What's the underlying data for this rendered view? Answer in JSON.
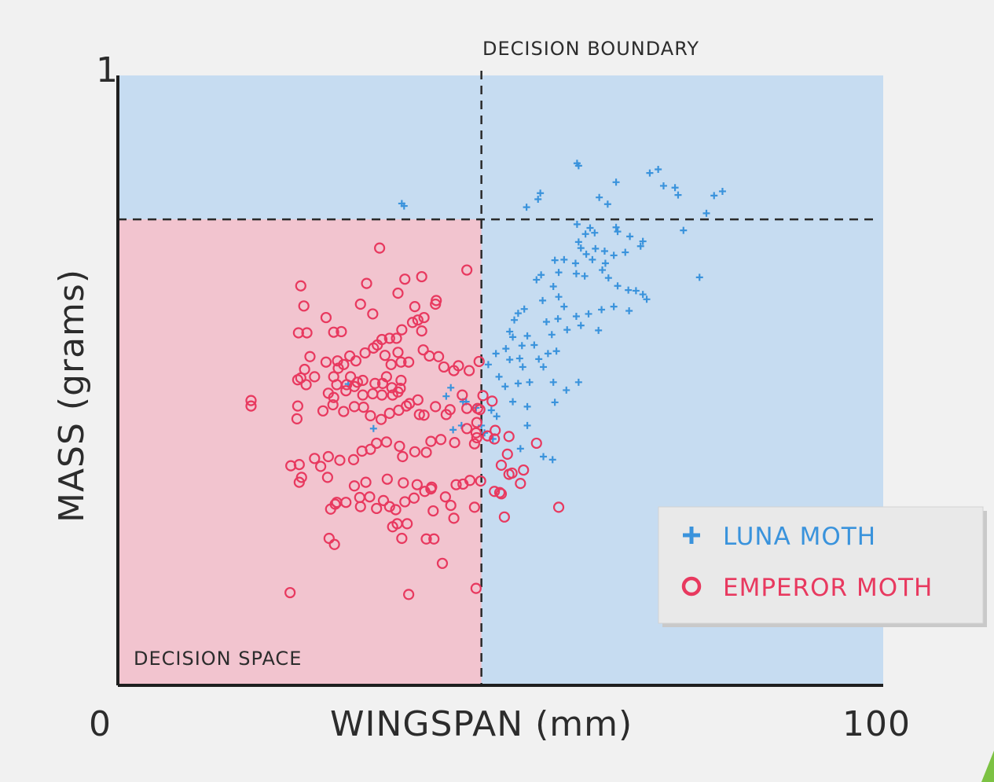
{
  "chart_data": {
    "type": "scatter",
    "xlabel": "WINGSPAN (mm)",
    "ylabel": "MASS (grams)",
    "xlim": [
      0,
      100
    ],
    "ylim": [
      0,
      1
    ],
    "x_tick_labels": [
      "0",
      "100"
    ],
    "y_tick_labels": [
      "1"
    ],
    "grid": false,
    "legend_position": "right",
    "annotations": {
      "boundary_label": "DECISION BOUNDARY",
      "space_label": "DECISION SPACE"
    },
    "decision_boundary": {
      "x": 47.5,
      "y": 0.764
    },
    "regions": {
      "emperor_color": "#f2c4cf",
      "luna_color": "#c6dcf1"
    },
    "series": [
      {
        "name": "LUNA MOTH",
        "marker": "plus",
        "color": "#3a93dc",
        "points": [
          [
            37.1,
            0.79
          ],
          [
            37.4,
            0.786
          ],
          [
            60.2,
            0.852
          ],
          [
            60.0,
            0.856
          ],
          [
            53.4,
            0.784
          ],
          [
            54.9,
            0.797
          ],
          [
            55.2,
            0.807
          ],
          [
            65.1,
            0.825
          ],
          [
            70.6,
            0.846
          ],
          [
            69.5,
            0.84
          ],
          [
            71.3,
            0.819
          ],
          [
            72.8,
            0.816
          ],
          [
            73.2,
            0.804
          ],
          [
            79.0,
            0.81
          ],
          [
            77.9,
            0.803
          ],
          [
            76.9,
            0.774
          ],
          [
            62.9,
            0.8
          ],
          [
            64.0,
            0.789
          ],
          [
            60.0,
            0.756
          ],
          [
            61.7,
            0.75
          ],
          [
            61.1,
            0.74
          ],
          [
            62.3,
            0.742
          ],
          [
            65.1,
            0.751
          ],
          [
            65.3,
            0.744
          ],
          [
            66.9,
            0.736
          ],
          [
            68.6,
            0.728
          ],
          [
            68.3,
            0.72
          ],
          [
            60.2,
            0.727
          ],
          [
            60.5,
            0.717
          ],
          [
            62.4,
            0.716
          ],
          [
            63.6,
            0.712
          ],
          [
            64.8,
            0.705
          ],
          [
            66.3,
            0.71
          ],
          [
            73.9,
            0.746
          ],
          [
            76.0,
            0.669
          ],
          [
            61.2,
            0.707
          ],
          [
            62.0,
            0.698
          ],
          [
            63.7,
            0.692
          ],
          [
            59.8,
            0.692
          ],
          [
            58.3,
            0.698
          ],
          [
            57.1,
            0.697
          ],
          [
            55.3,
            0.673
          ],
          [
            54.7,
            0.665
          ],
          [
            57.6,
            0.677
          ],
          [
            59.9,
            0.675
          ],
          [
            61.0,
            0.671
          ],
          [
            63.3,
            0.681
          ],
          [
            64.1,
            0.668
          ],
          [
            65.3,
            0.655
          ],
          [
            66.7,
            0.648
          ],
          [
            67.7,
            0.647
          ],
          [
            68.6,
            0.641
          ],
          [
            69.1,
            0.633
          ],
          [
            66.8,
            0.614
          ],
          [
            64.8,
            0.621
          ],
          [
            63.2,
            0.616
          ],
          [
            61.5,
            0.609
          ],
          [
            59.9,
            0.605
          ],
          [
            60.5,
            0.59
          ],
          [
            62.8,
            0.582
          ],
          [
            58.3,
            0.621
          ],
          [
            57.6,
            0.637
          ],
          [
            56.9,
            0.654
          ],
          [
            55.5,
            0.631
          ],
          [
            57.5,
            0.601
          ],
          [
            56.0,
            0.596
          ],
          [
            58.7,
            0.583
          ],
          [
            56.7,
            0.575
          ],
          [
            57.3,
            0.548
          ],
          [
            53.1,
            0.617
          ],
          [
            51.8,
            0.599
          ],
          [
            51.6,
            0.571
          ],
          [
            53.5,
            0.573
          ],
          [
            54.4,
            0.558
          ],
          [
            55.0,
            0.535
          ],
          [
            56.2,
            0.544
          ],
          [
            55.6,
            0.522
          ],
          [
            52.5,
            0.536
          ],
          [
            52.9,
            0.522
          ],
          [
            52.8,
            0.557
          ],
          [
            51.2,
            0.534
          ],
          [
            50.7,
            0.552
          ],
          [
            49.4,
            0.544
          ],
          [
            48.4,
            0.526
          ],
          [
            49.8,
            0.506
          ],
          [
            50.6,
            0.49
          ],
          [
            52.3,
            0.495
          ],
          [
            53.8,
            0.497
          ],
          [
            56.9,
            0.497
          ],
          [
            58.6,
            0.484
          ],
          [
            60.2,
            0.497
          ],
          [
            57.1,
            0.464
          ],
          [
            53.5,
            0.457
          ],
          [
            51.6,
            0.465
          ],
          [
            49.5,
            0.441
          ],
          [
            48.8,
            0.451
          ],
          [
            55.6,
            0.375
          ],
          [
            53.5,
            0.426
          ],
          [
            52.6,
            0.388
          ],
          [
            56.8,
            0.37
          ],
          [
            47.9,
            0.414
          ],
          [
            49.0,
            0.404
          ],
          [
            44.9,
            0.426
          ],
          [
            43.8,
            0.419
          ],
          [
            45.5,
            0.465
          ],
          [
            45.1,
            0.465
          ],
          [
            42.9,
            0.474
          ],
          [
            43.5,
            0.488
          ],
          [
            33.4,
            0.421
          ],
          [
            30.1,
            0.494
          ],
          [
            51.2,
            0.58
          ],
          [
            52.3,
            0.61
          ],
          [
            46.8,
            0.455
          ],
          [
            47.5,
            0.426
          ]
        ]
      },
      {
        "name": "EMPEROR MOTH",
        "marker": "circle",
        "color": "#e8395f",
        "points": [
          [
            34.2,
            0.717
          ],
          [
            45.6,
            0.681
          ],
          [
            23.9,
            0.655
          ],
          [
            37.5,
            0.666
          ],
          [
            39.7,
            0.67
          ],
          [
            32.5,
            0.659
          ],
          [
            24.3,
            0.622
          ],
          [
            31.7,
            0.625
          ],
          [
            38.8,
            0.621
          ],
          [
            41.5,
            0.625
          ],
          [
            41.6,
            0.631
          ],
          [
            36.6,
            0.643
          ],
          [
            33.3,
            0.609
          ],
          [
            39.7,
            0.581
          ],
          [
            40.0,
            0.603
          ],
          [
            27.2,
            0.603
          ],
          [
            38.5,
            0.595
          ],
          [
            39.2,
            0.599
          ],
          [
            23.6,
            0.578
          ],
          [
            24.7,
            0.578
          ],
          [
            28.2,
            0.579
          ],
          [
            29.2,
            0.58
          ],
          [
            34.5,
            0.567
          ],
          [
            35.5,
            0.569
          ],
          [
            36.4,
            0.569
          ],
          [
            37.1,
            0.583
          ],
          [
            33.9,
            0.558
          ],
          [
            36.6,
            0.546
          ],
          [
            38.0,
            0.53
          ],
          [
            39.9,
            0.55
          ],
          [
            40.7,
            0.54
          ],
          [
            41.9,
            0.539
          ],
          [
            42.6,
            0.522
          ],
          [
            43.9,
            0.516
          ],
          [
            44.5,
            0.524
          ],
          [
            45.9,
            0.516
          ],
          [
            47.2,
            0.531
          ],
          [
            37.0,
            0.53
          ],
          [
            35.7,
            0.526
          ],
          [
            34.9,
            0.541
          ],
          [
            33.4,
            0.553
          ],
          [
            32.3,
            0.545
          ],
          [
            31.1,
            0.532
          ],
          [
            30.3,
            0.54
          ],
          [
            29.5,
            0.526
          ],
          [
            28.7,
            0.532
          ],
          [
            27.2,
            0.53
          ],
          [
            25.1,
            0.539
          ],
          [
            24.4,
            0.518
          ],
          [
            25.7,
            0.506
          ],
          [
            24.6,
            0.493
          ],
          [
            23.9,
            0.504
          ],
          [
            23.5,
            0.501
          ],
          [
            28.2,
            0.506
          ],
          [
            28.6,
            0.493
          ],
          [
            28.8,
            0.52
          ],
          [
            30.4,
            0.506
          ],
          [
            31.3,
            0.497
          ],
          [
            32.0,
            0.5
          ],
          [
            33.6,
            0.495
          ],
          [
            34.6,
            0.495
          ],
          [
            35.1,
            0.506
          ],
          [
            35.8,
            0.488
          ],
          [
            36.9,
            0.487
          ],
          [
            37.0,
            0.5
          ],
          [
            36.6,
            0.481
          ],
          [
            35.9,
            0.476
          ],
          [
            34.5,
            0.476
          ],
          [
            33.3,
            0.478
          ],
          [
            32.0,
            0.476
          ],
          [
            30.9,
            0.49
          ],
          [
            29.8,
            0.483
          ],
          [
            29.9,
            0.493
          ],
          [
            28.2,
            0.472
          ],
          [
            27.5,
            0.479
          ],
          [
            17.4,
            0.467
          ],
          [
            17.4,
            0.458
          ],
          [
            23.5,
            0.458
          ],
          [
            23.4,
            0.437
          ],
          [
            26.8,
            0.45
          ],
          [
            28.1,
            0.46
          ],
          [
            29.5,
            0.449
          ],
          [
            30.9,
            0.457
          ],
          [
            32.1,
            0.456
          ],
          [
            33.0,
            0.442
          ],
          [
            34.4,
            0.436
          ],
          [
            35.5,
            0.446
          ],
          [
            36.7,
            0.451
          ],
          [
            37.7,
            0.458
          ],
          [
            38.1,
            0.462
          ],
          [
            39.2,
            0.468
          ],
          [
            39.4,
            0.444
          ],
          [
            40.0,
            0.443
          ],
          [
            41.5,
            0.457
          ],
          [
            42.9,
            0.444
          ],
          [
            43.4,
            0.452
          ],
          [
            45.6,
            0.454
          ],
          [
            47.0,
            0.454
          ],
          [
            46.9,
            0.431
          ],
          [
            45.6,
            0.421
          ],
          [
            46.9,
            0.406
          ],
          [
            46.6,
            0.396
          ],
          [
            44.0,
            0.398
          ],
          [
            42.2,
            0.403
          ],
          [
            40.9,
            0.4
          ],
          [
            40.3,
            0.382
          ],
          [
            38.8,
            0.383
          ],
          [
            37.2,
            0.375
          ],
          [
            36.8,
            0.392
          ],
          [
            35.1,
            0.399
          ],
          [
            33.8,
            0.397
          ],
          [
            33.0,
            0.387
          ],
          [
            31.9,
            0.384
          ],
          [
            30.8,
            0.37
          ],
          [
            29.0,
            0.369
          ],
          [
            27.5,
            0.375
          ],
          [
            26.5,
            0.359
          ],
          [
            25.7,
            0.372
          ],
          [
            23.7,
            0.362
          ],
          [
            22.6,
            0.36
          ],
          [
            23.7,
            0.333
          ],
          [
            24.0,
            0.341
          ],
          [
            27.4,
            0.341
          ],
          [
            30.9,
            0.327
          ],
          [
            32.4,
            0.333
          ],
          [
            35.2,
            0.338
          ],
          [
            37.3,
            0.332
          ],
          [
            39.1,
            0.329
          ],
          [
            40.9,
            0.322
          ],
          [
            42.8,
            0.309
          ],
          [
            44.2,
            0.329
          ],
          [
            45.1,
            0.33
          ],
          [
            46.0,
            0.336
          ],
          [
            47.4,
            0.335
          ],
          [
            49.2,
            0.318
          ],
          [
            49.9,
            0.316
          ],
          [
            50.1,
            0.314
          ],
          [
            51.5,
            0.348
          ],
          [
            53.0,
            0.353
          ],
          [
            52.6,
            0.331
          ],
          [
            51.1,
            0.346
          ],
          [
            50.1,
            0.361
          ],
          [
            50.9,
            0.379
          ],
          [
            51.1,
            0.408
          ],
          [
            49.2,
            0.404
          ],
          [
            49.3,
            0.418
          ],
          [
            48.9,
            0.466
          ],
          [
            47.7,
            0.475
          ],
          [
            47.3,
            0.452
          ],
          [
            46.8,
            0.414
          ],
          [
            41.0,
            0.325
          ],
          [
            40.1,
            0.318
          ],
          [
            38.7,
            0.307
          ],
          [
            37.5,
            0.301
          ],
          [
            35.5,
            0.293
          ],
          [
            34.7,
            0.303
          ],
          [
            32.9,
            0.309
          ],
          [
            31.6,
            0.308
          ],
          [
            28.4,
            0.297
          ],
          [
            27.8,
            0.289
          ],
          [
            31.7,
            0.293
          ],
          [
            33.8,
            0.29
          ],
          [
            28.6,
            0.3
          ],
          [
            29.8,
            0.3
          ],
          [
            36.3,
            0.288
          ],
          [
            35.9,
            0.26
          ],
          [
            37.8,
            0.265
          ],
          [
            41.2,
            0.286
          ],
          [
            43.5,
            0.295
          ],
          [
            43.9,
            0.274
          ],
          [
            40.3,
            0.24
          ],
          [
            41.3,
            0.24
          ],
          [
            37.1,
            0.241
          ],
          [
            36.5,
            0.265
          ],
          [
            27.6,
            0.241
          ],
          [
            28.3,
            0.231
          ],
          [
            22.5,
            0.152
          ],
          [
            38.0,
            0.149
          ],
          [
            46.8,
            0.159
          ],
          [
            42.4,
            0.2
          ],
          [
            46.6,
            0.292
          ],
          [
            50.5,
            0.276
          ],
          [
            57.6,
            0.292
          ],
          [
            54.7,
            0.397
          ],
          [
            48.3,
            0.409
          ],
          [
            45.0,
            0.476
          ]
        ]
      }
    ]
  }
}
